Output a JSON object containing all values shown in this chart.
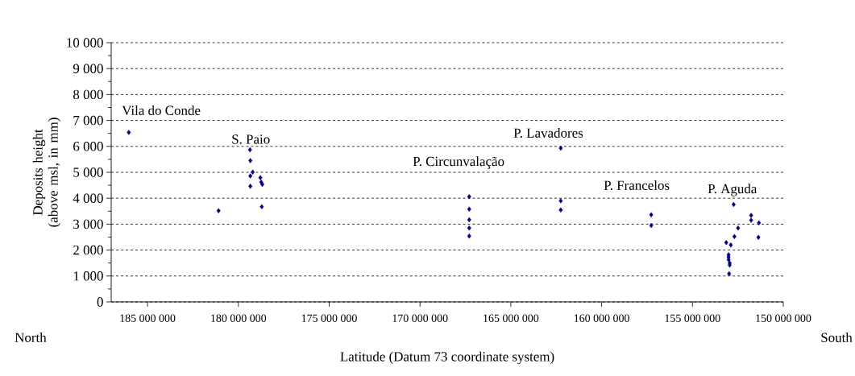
{
  "chart_data": {
    "type": "scatter",
    "xlabel": "Latitude (Datum 73 coordinate system)",
    "ylabel": "Deposits height (above msl, in mm)",
    "x": [
      186030000,
      181090000,
      179360000,
      179340000,
      179210000,
      179340000,
      179340000,
      178790000,
      178740000,
      178680000,
      178710000,
      167290000,
      167290000,
      167290000,
      167290000,
      167290000,
      162250000,
      162250000,
      162250000,
      157270000,
      157270000,
      152730000,
      151770000,
      151770000,
      151340000,
      151370000,
      152490000,
      152690000,
      153140000,
      152890000,
      153010000,
      153010000,
      153010000,
      152950000,
      152950000,
      152980000
    ],
    "values": [
      6540,
      3520,
      5870,
      5450,
      5010,
      4860,
      4460,
      4790,
      4620,
      4530,
      3670,
      4060,
      3580,
      3170,
      2850,
      2540,
      5930,
      3900,
      3550,
      3360,
      2950,
      3760,
      3340,
      3150,
      3050,
      2490,
      2850,
      2520,
      2290,
      2200,
      1820,
      1730,
      1630,
      1500,
      1420,
      1090
    ],
    "color": "#000080",
    "marker": "diamond",
    "xlim": [
      187000000,
      150000000
    ],
    "xticks": [
      {
        "value": 185000000,
        "label": "185 000 000"
      },
      {
        "value": 180000000,
        "label": "180 000 000"
      },
      {
        "value": 175000000,
        "label": "175 000 000"
      },
      {
        "value": 170000000,
        "label": "170 000 000"
      },
      {
        "value": 165000000,
        "label": "165 000 000"
      },
      {
        "value": 160000000,
        "label": "160 000 000"
      },
      {
        "value": 155000000,
        "label": "155 000 000"
      },
      {
        "value": 150000000,
        "label": "150 000 000"
      }
    ],
    "ylim": [
      0,
      10000
    ],
    "yticks": [
      0,
      {
        "value": 1000,
        "label": "1 000"
      },
      {
        "value": 2000,
        "label": "2 000"
      },
      {
        "value": 3000,
        "label": "3 000"
      },
      {
        "value": 4000,
        "label": "4 000"
      },
      {
        "value": 5000,
        "label": "5 000"
      },
      {
        "value": 6000,
        "label": "6 000"
      },
      {
        "value": 7000,
        "label": "7 000"
      },
      {
        "value": 8000,
        "label": "8 000"
      },
      {
        "value": 9000,
        "label": "9 000"
      },
      {
        "value": 10000,
        "label": "10 000"
      }
    ],
    "grid": "y",
    "annotations": [
      "Vila do Conde",
      "S. Paio",
      "P. Circunvalação",
      "P. Lavadores",
      "P. Francelos",
      "P. Aguda",
      "North",
      "South"
    ]
  }
}
